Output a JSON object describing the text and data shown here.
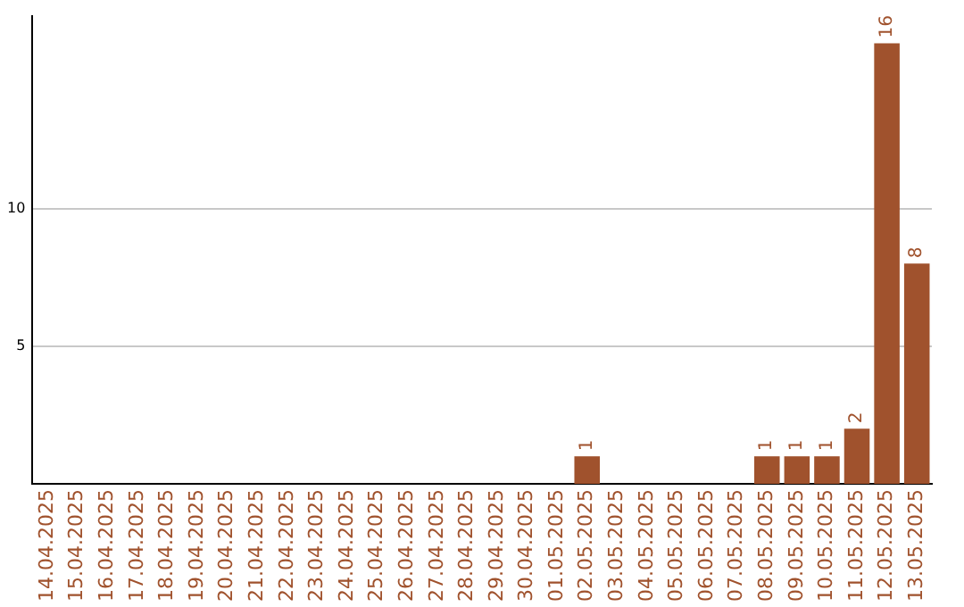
{
  "chart_data": {
    "type": "bar",
    "categories": [
      "14.04.2025",
      "15.04.2025",
      "16.04.2025",
      "17.04.2025",
      "18.04.2025",
      "19.04.2025",
      "20.04.2025",
      "21.04.2025",
      "22.04.2025",
      "23.04.2025",
      "24.04.2025",
      "25.04.2025",
      "26.04.2025",
      "27.04.2025",
      "28.04.2025",
      "29.04.2025",
      "30.04.2025",
      "01.05.2025",
      "02.05.2025",
      "03.05.2025",
      "04.05.2025",
      "05.05.2025",
      "06.05.2025",
      "07.05.2025",
      "08.05.2025",
      "09.05.2025",
      "10.05.2025",
      "11.05.2025",
      "12.05.2025",
      "13.05.2025"
    ],
    "values": [
      0,
      0,
      0,
      0,
      0,
      0,
      0,
      0,
      0,
      0,
      0,
      0,
      0,
      0,
      0,
      0,
      0,
      0,
      1,
      0,
      0,
      0,
      0,
      0,
      1,
      1,
      1,
      2,
      16,
      8
    ],
    "value_labels": [
      null,
      null,
      null,
      null,
      null,
      null,
      null,
      null,
      null,
      null,
      null,
      null,
      null,
      null,
      null,
      null,
      null,
      null,
      "1",
      null,
      null,
      null,
      null,
      null,
      "1",
      "1",
      "1",
      "2",
      "16",
      "8"
    ],
    "color": "#a0522d",
    "ylim": [
      0,
      17
    ],
    "yticks": [
      5,
      10
    ],
    "grid": "y",
    "legend": false
  }
}
